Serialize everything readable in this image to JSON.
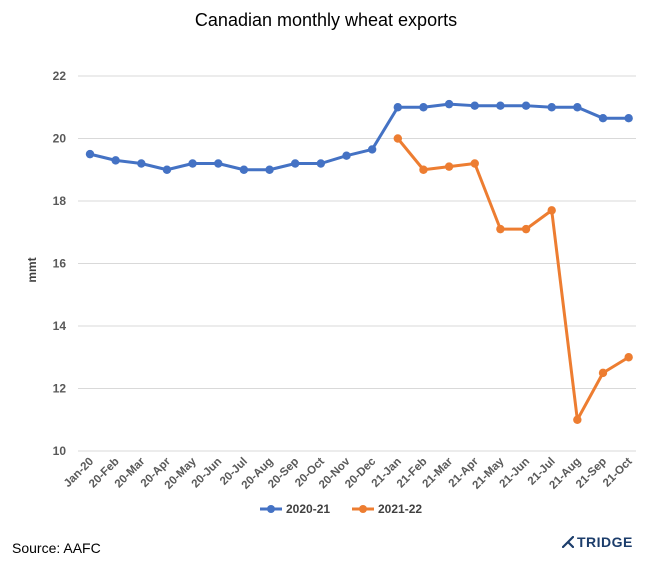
{
  "footer": {
    "source": "Source: AAFC",
    "brand": "TRIDGE"
  },
  "chart_data": {
    "type": "line",
    "title": "Canadian monthly wheat exports",
    "xlabel": "",
    "ylabel": "mmt",
    "ylim": [
      10,
      22
    ],
    "yticks": [
      10,
      12,
      14,
      16,
      18,
      20,
      22
    ],
    "grid": true,
    "legend_position": "bottom-center",
    "categories": [
      "Jan-20",
      "20-Feb",
      "20-Mar",
      "20-Apr",
      "20-May",
      "20-Jun",
      "20-Jul",
      "20-Aug",
      "20-Sep",
      "20-Oct",
      "20-Nov",
      "20-Dec",
      "21-Jan",
      "21-Feb",
      "21-Mar",
      "21-Apr",
      "21-May",
      "21-Jun",
      "21-Jul",
      "21-Aug",
      "21-Sep",
      "21-Oct"
    ],
    "series": [
      {
        "name": "2020-21",
        "color": "#4472c4",
        "values": [
          19.5,
          19.3,
          19.2,
          19.0,
          19.2,
          19.2,
          19.0,
          19.0,
          19.2,
          19.2,
          19.45,
          19.65,
          21.0,
          21.0,
          21.1,
          21.05,
          21.05,
          21.05,
          21.0,
          21.0,
          20.65,
          20.65
        ]
      },
      {
        "name": "2021-22",
        "color": "#ed7d31",
        "values": [
          null,
          null,
          null,
          null,
          null,
          null,
          null,
          null,
          null,
          null,
          null,
          null,
          20.0,
          19.0,
          19.1,
          19.2,
          17.1,
          17.1,
          17.7,
          11.0,
          12.5,
          13.0
        ]
      }
    ]
  }
}
